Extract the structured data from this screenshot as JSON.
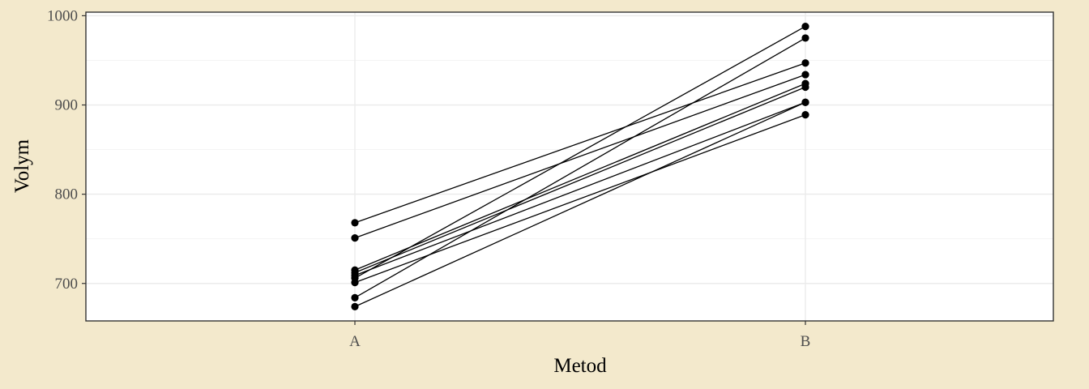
{
  "chart_data": {
    "type": "line",
    "categories": [
      "A",
      "B"
    ],
    "xlabel": "Metod",
    "ylabel": "Volym",
    "ylim": [
      658,
      1004
    ],
    "yticks": [
      700,
      800,
      900,
      1000
    ],
    "ytick_labels": [
      "700",
      "800",
      "900",
      "1000"
    ],
    "grid": true,
    "legend": "none",
    "series": [
      {
        "values": [
          768,
          947
        ]
      },
      {
        "values": [
          751,
          934
        ]
      },
      {
        "values": [
          715,
          924
        ]
      },
      {
        "values": [
          712,
          920
        ]
      },
      {
        "values": [
          709,
          903
        ]
      },
      {
        "values": [
          706,
          988
        ]
      },
      {
        "values": [
          701,
          889
        ]
      },
      {
        "values": [
          684,
          975
        ]
      },
      {
        "values": [
          674,
          903
        ]
      }
    ]
  },
  "colors": {
    "page_background": "#f3e9cc",
    "panel_background": "#ffffff",
    "grid": "#ebebeb",
    "series": "#000000",
    "tick_text": "#4d4d4d"
  }
}
